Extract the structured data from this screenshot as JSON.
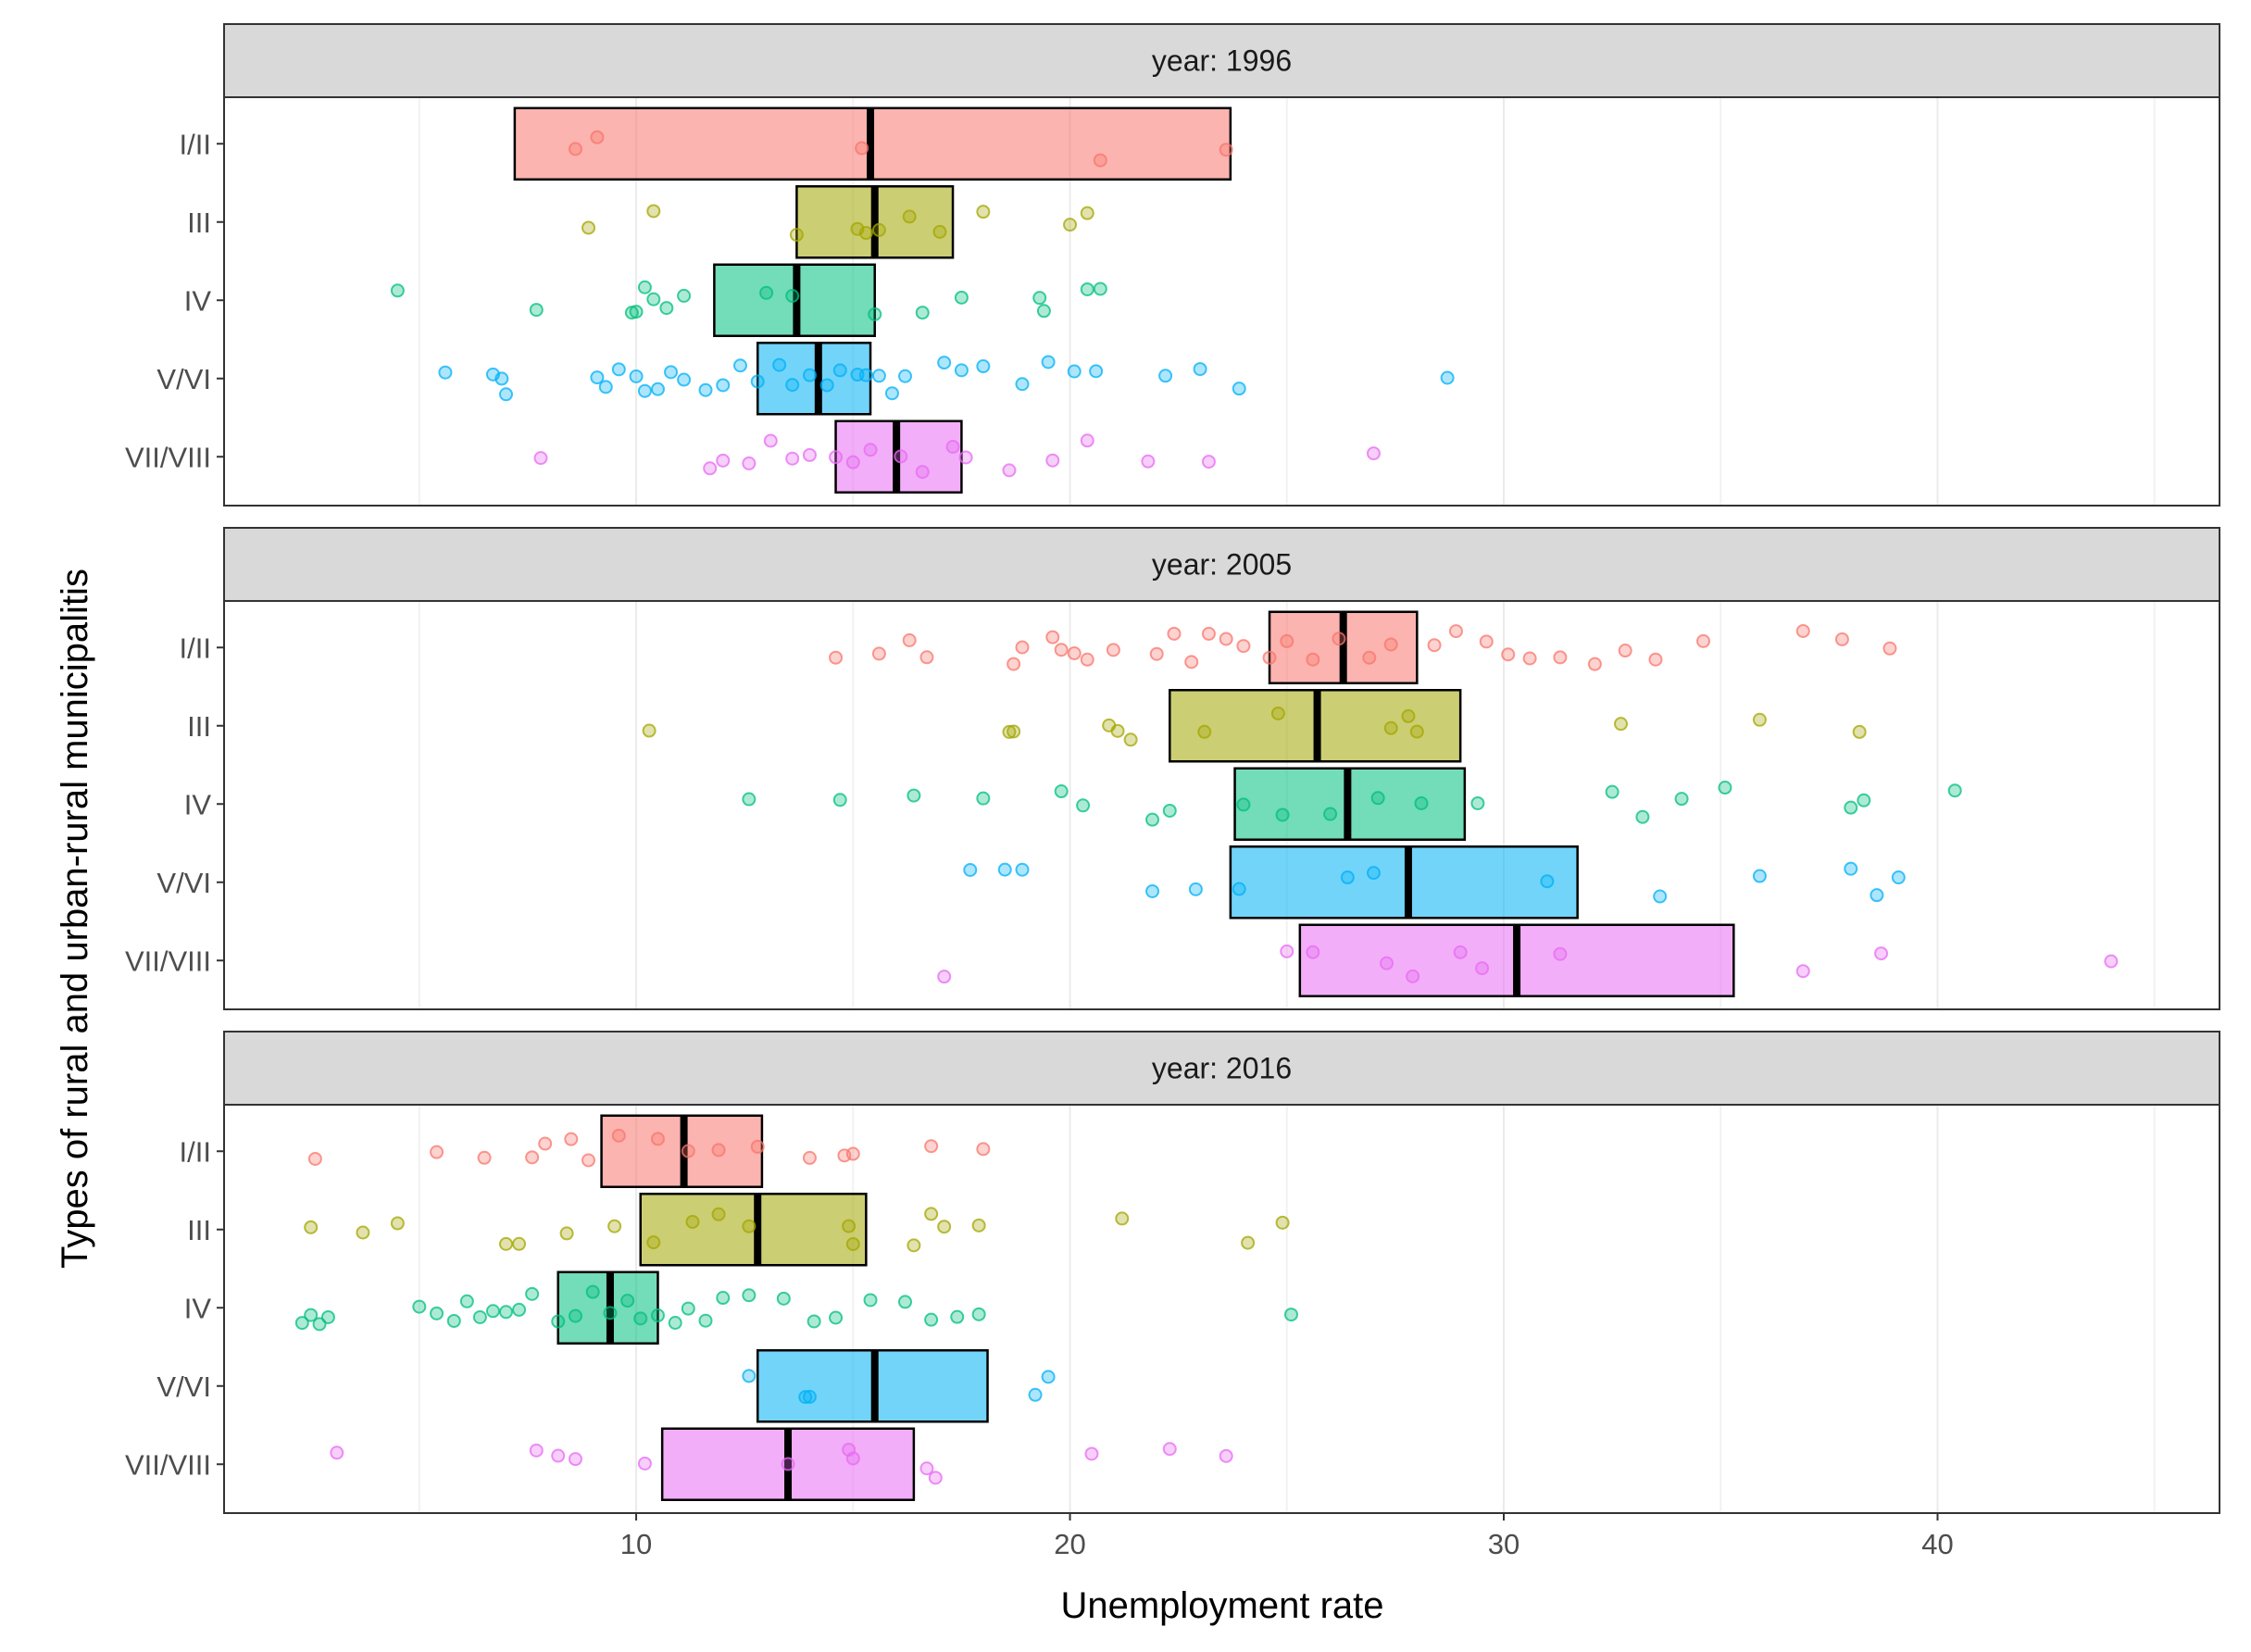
{
  "chart_data": {
    "type": "crossbar_jitter",
    "title": "",
    "xlabel": "Unemployment rate",
    "ylabel": "Types of rural and urban-rural municipalitis",
    "xlim": [
      0.5,
      46.5
    ],
    "xticks": [
      10,
      20,
      30,
      40
    ],
    "categories": [
      "I/II",
      "III",
      "IV",
      "V/VI",
      "VII/VIII"
    ],
    "colors": {
      "I/II": "#F8766D",
      "III": "#A3A500",
      "IV": "#00BF7D",
      "V/VI": "#00B0F6",
      "VII/VIII": "#E76BF3"
    },
    "panels": [
      {
        "label": "year: 1996",
        "boxes": [
          {
            "category": "I/II",
            "lower": 7.2,
            "median": 15.4,
            "upper": 23.7
          },
          {
            "category": "III",
            "lower": 13.7,
            "median": 15.5,
            "upper": 17.3
          },
          {
            "category": "IV",
            "lower": 11.8,
            "median": 13.7,
            "upper": 15.5
          },
          {
            "category": "V/VI",
            "lower": 12.8,
            "median": 14.2,
            "upper": 15.4
          },
          {
            "category": "VII/VIII",
            "lower": 14.6,
            "median": 16.0,
            "upper": 17.5
          }
        ],
        "points": [
          {
            "category": "I/II",
            "x": [
              8.6,
              9.1,
              15.2,
              20.7,
              23.6
            ]
          },
          {
            "category": "III",
            "x": [
              8.9,
              10.4,
              13.7,
              15.1,
              15.3,
              15.6,
              16.3,
              17.0,
              18.0,
              20.0,
              20.4
            ]
          },
          {
            "category": "IV",
            "x": [
              4.5,
              7.7,
              9.9,
              10.0,
              10.2,
              10.4,
              10.7,
              11.1,
              13.0,
              13.6,
              15.5,
              16.6,
              17.5,
              19.3,
              19.4,
              20.4,
              20.7
            ]
          },
          {
            "category": "V/VI",
            "x": [
              5.6,
              6.7,
              6.9,
              7.0,
              9.1,
              9.3,
              9.6,
              10.0,
              10.2,
              10.5,
              10.8,
              11.1,
              11.6,
              12.0,
              12.4,
              12.8,
              13.3,
              13.6,
              14.0,
              14.4,
              14.7,
              15.1,
              15.3,
              15.6,
              15.9,
              16.2,
              17.1,
              17.5,
              18.0,
              18.9,
              19.5,
              20.1,
              20.6,
              22.2,
              23.0,
              23.9,
              28.7
            ]
          },
          {
            "category": "VII/VIII",
            "x": [
              7.8,
              11.7,
              12.0,
              12.6,
              13.1,
              13.6,
              14.0,
              14.6,
              15.0,
              15.4,
              16.1,
              16.6,
              17.3,
              17.6,
              18.6,
              19.6,
              20.4,
              21.8,
              23.2,
              27.0
            ]
          }
        ]
      },
      {
        "label": "year: 2005",
        "boxes": [
          {
            "category": "I/II",
            "lower": 24.6,
            "median": 26.3,
            "upper": 28.0
          },
          {
            "category": "III",
            "lower": 22.3,
            "median": 25.7,
            "upper": 29.0
          },
          {
            "category": "IV",
            "lower": 23.8,
            "median": 26.4,
            "upper": 29.1
          },
          {
            "category": "V/VI",
            "lower": 23.7,
            "median": 27.8,
            "upper": 31.7
          },
          {
            "category": "VII/VIII",
            "lower": 25.3,
            "median": 30.3,
            "upper": 35.3
          }
        ],
        "points": [
          {
            "category": "I/II",
            "x": [
              14.6,
              15.6,
              16.3,
              16.7,
              18.7,
              18.9,
              19.6,
              19.8,
              20.1,
              20.4,
              21.0,
              22.0,
              22.4,
              22.8,
              23.2,
              23.6,
              24.0,
              24.6,
              25.0,
              25.6,
              26.2,
              26.9,
              27.4,
              28.4,
              28.9,
              29.6,
              30.1,
              30.6,
              31.3,
              32.1,
              32.8,
              33.5,
              34.6,
              36.9,
              37.8,
              38.9
            ]
          },
          {
            "category": "III",
            "x": [
              10.3,
              18.6,
              18.7,
              20.9,
              21.1,
              21.4,
              23.1,
              24.8,
              27.4,
              27.8,
              28.0,
              32.7,
              35.9,
              38.2
            ]
          },
          {
            "category": "IV",
            "x": [
              12.6,
              14.7,
              16.4,
              18.0,
              19.8,
              20.3,
              21.9,
              22.3,
              24.0,
              24.9,
              26.0,
              27.1,
              28.1,
              29.4,
              32.5,
              33.2,
              34.1,
              35.1,
              38.0,
              38.3,
              40.4
            ]
          },
          {
            "category": "V/VI",
            "x": [
              17.7,
              18.5,
              18.9,
              21.9,
              22.9,
              23.9,
              26.4,
              27.0,
              31.0,
              33.6,
              35.9,
              38.0,
              38.6,
              39.1
            ]
          },
          {
            "category": "VII/VIII",
            "x": [
              17.1,
              25.0,
              25.6,
              27.3,
              27.9,
              29.0,
              29.5,
              31.3,
              36.9,
              38.7,
              44.0
            ]
          }
        ]
      },
      {
        "label": "year: 2016",
        "boxes": [
          {
            "category": "I/II",
            "lower": 9.2,
            "median": 11.1,
            "upper": 12.9
          },
          {
            "category": "III",
            "lower": 10.1,
            "median": 12.8,
            "upper": 15.3
          },
          {
            "category": "IV",
            "lower": 8.2,
            "median": 9.4,
            "upper": 10.5
          },
          {
            "category": "V/VI",
            "lower": 12.8,
            "median": 15.5,
            "upper": 18.1
          },
          {
            "category": "VII/VIII",
            "lower": 10.6,
            "median": 13.5,
            "upper": 16.4
          }
        ],
        "points": [
          {
            "category": "I/II",
            "x": [
              2.6,
              5.4,
              6.5,
              7.6,
              7.9,
              8.5,
              8.9,
              9.6,
              10.5,
              11.2,
              11.9,
              12.8,
              14.0,
              14.8,
              15.0,
              16.8,
              18.0
            ]
          },
          {
            "category": "III",
            "x": [
              2.5,
              3.7,
              4.5,
              7.0,
              7.3,
              8.4,
              9.5,
              10.4,
              11.3,
              11.9,
              12.6,
              14.9,
              15.0,
              16.4,
              16.8,
              17.1,
              17.9,
              21.2,
              24.1,
              24.9
            ]
          },
          {
            "category": "IV",
            "x": [
              2.3,
              2.5,
              2.7,
              2.9,
              5.0,
              5.4,
              5.8,
              6.1,
              6.4,
              6.7,
              7.0,
              7.3,
              7.6,
              8.2,
              8.6,
              9.0,
              9.4,
              9.8,
              10.1,
              10.5,
              10.9,
              11.2,
              11.6,
              12.0,
              12.6,
              13.4,
              14.1,
              14.6,
              15.4,
              16.2,
              16.8,
              17.4,
              17.9,
              25.1
            ]
          },
          {
            "category": "V/VI",
            "x": [
              12.6,
              13.9,
              14.0,
              19.2,
              19.5
            ]
          },
          {
            "category": "VII/VIII",
            "x": [
              3.1,
              7.7,
              8.2,
              8.6,
              10.2,
              13.5,
              14.9,
              15.0,
              16.7,
              16.9,
              20.5,
              22.3,
              23.6
            ]
          }
        ]
      }
    ]
  }
}
